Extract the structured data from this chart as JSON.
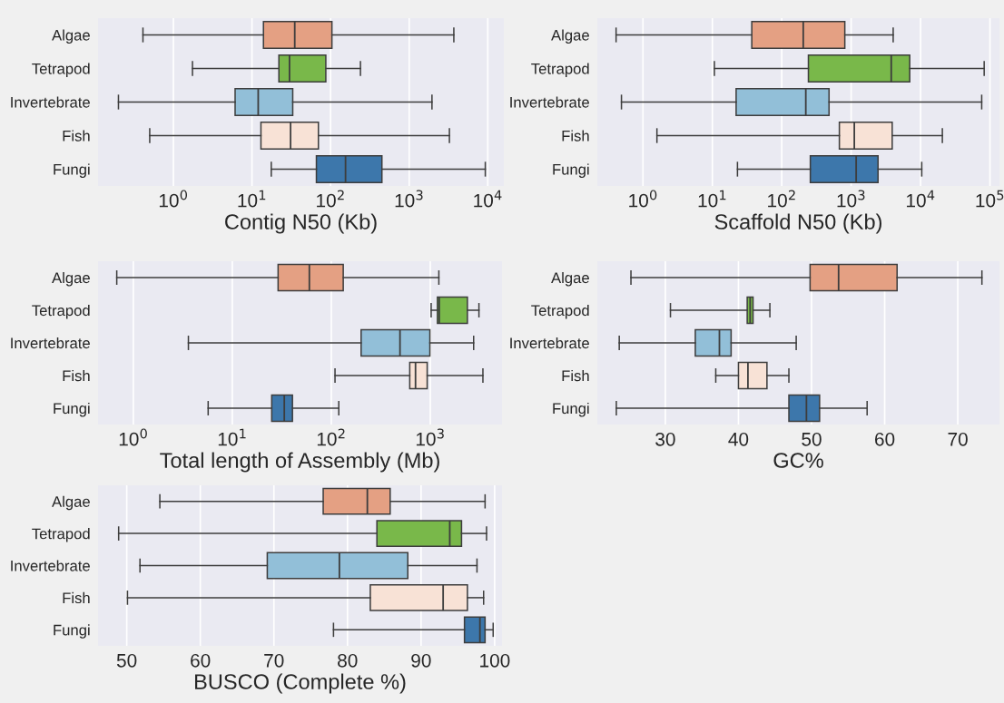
{
  "chart_data": [
    {
      "type": "box",
      "orientation": "horizontal",
      "log": "x",
      "grid": "x",
      "xlabel": "Contig N50 (Kb)",
      "categories": [
        "Algae",
        "Tetrapod",
        "Invertebrate",
        "Fish",
        "Fungi"
      ],
      "colors": [
        "#e4a083",
        "#79b84a",
        "#92bfd8",
        "#f8e2d6",
        "#3d77ab"
      ],
      "xlim": [
        0.11,
        16000
      ],
      "xticks": [
        {
          "value": 1,
          "label": "10$^{0}$"
        },
        {
          "value": 10,
          "label": "10$^{1}$"
        },
        {
          "value": 100,
          "label": "10$^{2}$"
        },
        {
          "value": 1000,
          "label": "10$^{3}$"
        },
        {
          "value": 10000,
          "label": "10$^{4}$"
        }
      ],
      "boxes": [
        {
          "low": 0.41,
          "q1": 14,
          "median": 35,
          "q3": 104,
          "high": 3700
        },
        {
          "low": 1.75,
          "q1": 22,
          "median": 30,
          "q3": 87,
          "high": 240
        },
        {
          "low": 0.2,
          "q1": 6.1,
          "median": 12,
          "q3": 33,
          "high": 1950
        },
        {
          "low": 0.5,
          "q1": 13,
          "median": 31,
          "q3": 70,
          "high": 3250
        },
        {
          "low": 17.6,
          "q1": 66,
          "median": 155,
          "q3": 450,
          "high": 9300
        }
      ]
    },
    {
      "type": "box",
      "orientation": "horizontal",
      "log": "x",
      "grid": "x",
      "xlabel": "Scaffold N50 (Kb)",
      "categories": [
        "Algae",
        "Tetrapod",
        "Invertebrate",
        "Fish",
        "Fungi"
      ],
      "colors": [
        "#e4a083",
        "#79b84a",
        "#92bfd8",
        "#f8e2d6",
        "#3d77ab"
      ],
      "xlim": [
        0.22,
        137000
      ],
      "xticks": [
        {
          "value": 1,
          "label": "10$^{0}$"
        },
        {
          "value": 10,
          "label": "10$^{1}$"
        },
        {
          "value": 100,
          "label": "10$^{2}$"
        },
        {
          "value": 1000,
          "label": "10$^{3}$"
        },
        {
          "value": 10000,
          "label": "10$^{4}$"
        },
        {
          "value": 100000,
          "label": "10$^{5}$"
        }
      ],
      "boxes": [
        {
          "low": 0.41,
          "q1": 37,
          "median": 204,
          "q3": 810,
          "high": 4030
        },
        {
          "low": 10.7,
          "q1": 242,
          "median": 3780,
          "q3": 6980,
          "high": 82500
        },
        {
          "low": 0.49,
          "q1": 22,
          "median": 222,
          "q3": 480,
          "high": 76000
        },
        {
          "low": 1.59,
          "q1": 676,
          "median": 1110,
          "q3": 3900,
          "high": 20600
        },
        {
          "low": 23,
          "q1": 258,
          "median": 1180,
          "q3": 2440,
          "high": 10400
        }
      ]
    },
    {
      "type": "box",
      "orientation": "horizontal",
      "log": "x",
      "grid": "x",
      "xlabel": "Total length of Assembly (Mb)",
      "categories": [
        "Algae",
        "Tetrapod",
        "Invertebrate",
        "Fish",
        "Fungi"
      ],
      "colors": [
        "#e4a083",
        "#79b84a",
        "#92bfd8",
        "#f8e2d6",
        "#3d77ab"
      ],
      "xlim": [
        0.44,
        5300
      ],
      "xticks": [
        {
          "value": 1,
          "label": "10$^{0}$"
        },
        {
          "value": 10,
          "label": "10$^{1}$"
        },
        {
          "value": 100,
          "label": "10$^{2}$"
        },
        {
          "value": 1000,
          "label": "10$^{3}$"
        }
      ],
      "boxes": [
        {
          "low": 0.68,
          "q1": 29,
          "median": 60,
          "q3": 132,
          "high": 1220
        },
        {
          "low": 1020,
          "q1": 1180,
          "median": 1230,
          "q3": 2370,
          "high": 3100
        },
        {
          "low": 3.6,
          "q1": 200,
          "median": 494,
          "q3": 990,
          "high": 2740
        },
        {
          "low": 109,
          "q1": 620,
          "median": 709,
          "q3": 930,
          "high": 3400
        },
        {
          "low": 5.7,
          "q1": 25,
          "median": 33.5,
          "q3": 40.5,
          "high": 119
        }
      ]
    },
    {
      "type": "box",
      "orientation": "horizontal",
      "grid": "x",
      "xlabel": "GC%",
      "categories": [
        "Algae",
        "Tetrapod",
        "Invertebrate",
        "Fish",
        "Fungi"
      ],
      "colors": [
        "#e4a083",
        "#79b84a",
        "#92bfd8",
        "#f8e2d6",
        "#3d77ab"
      ],
      "xlim": [
        20.7,
        75.7
      ],
      "xticks": [
        30,
        40,
        50,
        60,
        70
      ],
      "boxes": [
        {
          "low": 25.3,
          "q1": 49.8,
          "median": 53.7,
          "q3": 61.7,
          "high": 73.3
        },
        {
          "low": 30.7,
          "q1": 41.2,
          "median": 41.6,
          "q3": 42.0,
          "high": 44.3
        },
        {
          "low": 23.7,
          "q1": 34.1,
          "median": 37.4,
          "q3": 39.0,
          "high": 47.9
        },
        {
          "low": 36.9,
          "q1": 40.0,
          "median": 41.3,
          "q3": 43.9,
          "high": 46.9
        },
        {
          "low": 23.3,
          "q1": 46.9,
          "median": 49.3,
          "q3": 51.1,
          "high": 57.6
        }
      ]
    },
    {
      "type": "box",
      "orientation": "horizontal",
      "grid": "x",
      "xlabel": "BUSCO (Complete %)",
      "categories": [
        "Algae",
        "Tetrapod",
        "Invertebrate",
        "Fish",
        "Fungi"
      ],
      "colors": [
        "#e4a083",
        "#79b84a",
        "#92bfd8",
        "#f8e2d6",
        "#3d77ab"
      ],
      "xlim": [
        46.1,
        101
      ],
      "xticks": [
        50,
        60,
        70,
        80,
        90,
        100
      ],
      "boxes": [
        {
          "low": 54.5,
          "q1": 76.7,
          "median": 82.7,
          "q3": 85.8,
          "high": 98.7
        },
        {
          "low": 48.9,
          "q1": 84.0,
          "median": 93.9,
          "q3": 95.5,
          "high": 98.9
        },
        {
          "low": 51.8,
          "q1": 69.1,
          "median": 78.9,
          "q3": 88.2,
          "high": 97.6
        },
        {
          "low": 50.1,
          "q1": 83.1,
          "median": 93.0,
          "q3": 96.3,
          "high": 98.5
        },
        {
          "low": 78.1,
          "q1": 95.9,
          "median": 98.0,
          "q3": 98.7,
          "high": 99.8
        }
      ]
    }
  ]
}
